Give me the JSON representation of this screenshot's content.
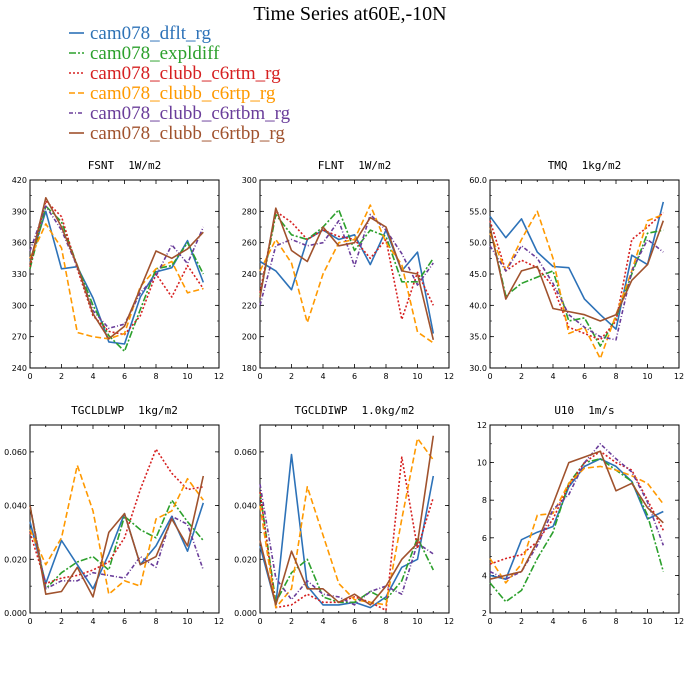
{
  "figure": {
    "title": "Time Series at60E,-10N"
  },
  "legend": [
    {
      "name": "cam078_dflt_rg",
      "color": "#2d72b8",
      "dash": ""
    },
    {
      "name": "cam078_expldiff",
      "color": "#2ca02c",
      "dash": "7,2,2,2"
    },
    {
      "name": "cam078_clubb_c6rtm_rg",
      "color": "#d62020",
      "dash": "2,2"
    },
    {
      "name": "cam078_clubb_c6rtp_rg",
      "color": "#ff9900",
      "dash": "6,3"
    },
    {
      "name": "cam078_clubb_c6rtbm_rg",
      "color": "#6a3d9a",
      "dash": "4,2,1,2"
    },
    {
      "name": "cam078_clubb_c6rtbp_rg",
      "color": "#a0522d",
      "dash": ""
    }
  ],
  "chart_data": [
    {
      "type": "line",
      "title": "FSNT",
      "units": "1W/m2",
      "x": [
        0,
        1,
        2,
        3,
        4,
        5,
        6,
        7,
        8,
        9,
        10,
        11
      ],
      "xlim": [
        0,
        12
      ],
      "xticks": [
        "0",
        "2",
        "4",
        "6",
        "8",
        "10",
        "12"
      ],
      "ylim": [
        240,
        420
      ],
      "yticks": [
        "240",
        "270",
        "300",
        "330",
        "360",
        "390",
        "420"
      ],
      "series": [
        {
          "values": [
            342,
            390,
            335,
            337,
            307,
            265,
            263,
            308,
            332,
            336,
            362,
            322
          ]
        },
        {
          "values": [
            335,
            395,
            380,
            338,
            300,
            271,
            256,
            296,
            335,
            338,
            360,
            330
          ]
        },
        {
          "values": [
            337,
            400,
            385,
            335,
            290,
            275,
            272,
            290,
            330,
            308,
            338,
            316
          ]
        },
        {
          "values": [
            345,
            378,
            355,
            274,
            270,
            268,
            273,
            318,
            335,
            342,
            312,
            316
          ]
        },
        {
          "values": [
            352,
            395,
            372,
            337,
            295,
            278,
            282,
            312,
            328,
            358,
            340,
            375
          ]
        },
        {
          "values": [
            340,
            403,
            375,
            338,
            292,
            268,
            280,
            316,
            352,
            345,
            354,
            370
          ]
        }
      ]
    },
    {
      "type": "line",
      "title": "FLNT",
      "units": "1W/m2",
      "x": [
        0,
        1,
        2,
        3,
        4,
        5,
        6,
        7,
        8,
        9,
        10,
        11
      ],
      "xlim": [
        0,
        12
      ],
      "xticks": [
        "0",
        "2",
        "4",
        "6",
        "8",
        "10",
        "12"
      ],
      "ylim": [
        180,
        300
      ],
      "yticks": [
        "180",
        "200",
        "220",
        "240",
        "260",
        "280",
        "300"
      ],
      "series": [
        {
          "values": [
            248,
            242,
            230,
            262,
            268,
            262,
            265,
            246,
            268,
            242,
            254,
            202
          ]
        },
        {
          "values": [
            226,
            278,
            265,
            262,
            270,
            281,
            255,
            268,
            264,
            235,
            235,
            250
          ]
        },
        {
          "values": [
            228,
            280,
            273,
            262,
            268,
            264,
            262,
            250,
            262,
            211,
            241,
            220
          ]
        },
        {
          "values": [
            242,
            262,
            247,
            209,
            240,
            260,
            262,
            284,
            260,
            246,
            203,
            196
          ]
        },
        {
          "values": [
            220,
            258,
            262,
            258,
            260,
            274,
            245,
            278,
            268,
            253,
            233,
            247
          ]
        },
        {
          "values": [
            225,
            282,
            255,
            248,
            270,
            258,
            260,
            276,
            270,
            242,
            240,
            198
          ]
        }
      ]
    },
    {
      "type": "line",
      "title": "TMQ",
      "units": "1kg/m2",
      "x": [
        0,
        1,
        2,
        3,
        4,
        5,
        6,
        7,
        8,
        9,
        10,
        11
      ],
      "xlim": [
        0,
        12
      ],
      "xticks": [
        "0",
        "2",
        "4",
        "6",
        "8",
        "10",
        "12"
      ],
      "ylim": [
        30.0,
        60.0
      ],
      "yticks": [
        "30.0",
        "35.0",
        "40.0",
        "45.0",
        "50.0",
        "55.0",
        "60.0"
      ],
      "series": [
        {
          "values": [
            54.2,
            50.8,
            53.8,
            48.5,
            46.2,
            46.0,
            41.0,
            38.5,
            36.2,
            48.0,
            46.5,
            56.5
          ]
        },
        {
          "values": [
            52.5,
            41.5,
            43.5,
            44.5,
            45.5,
            37.5,
            38.0,
            33.5,
            38.0,
            45.0,
            51.5,
            52.0
          ]
        },
        {
          "values": [
            53.5,
            45.5,
            47.2,
            46.0,
            43.0,
            36.5,
            35.5,
            34.5,
            37.5,
            50.5,
            52.5,
            54.8
          ]
        },
        {
          "values": [
            51.5,
            45.5,
            50.5,
            55.0,
            47.5,
            35.5,
            36.5,
            31.5,
            38.5,
            45.5,
            53.5,
            54.5
          ]
        },
        {
          "values": [
            49.5,
            45.5,
            49.5,
            47.5,
            43.5,
            38.5,
            36.5,
            35.0,
            34.5,
            45.5,
            50.5,
            48.5
          ]
        },
        {
          "values": [
            52.5,
            41.0,
            45.5,
            46.2,
            39.5,
            39.0,
            38.5,
            37.5,
            38.5,
            44.0,
            46.5,
            53.5
          ]
        }
      ]
    },
    {
      "type": "line",
      "title": "TGCLDLWP",
      "units": "1kg/m2",
      "x": [
        0,
        1,
        2,
        3,
        4,
        5,
        6,
        7,
        8,
        9,
        10,
        11
      ],
      "xlim": [
        0,
        12
      ],
      "xticks": [
        "0",
        "2",
        "4",
        "6",
        "8",
        "10",
        "12"
      ],
      "ylim": [
        0.0,
        0.07
      ],
      "yticks": [
        "0.000",
        "0.020",
        "0.040",
        "0.060"
      ],
      "series": [
        {
          "values": [
            0.034,
            0.011,
            0.027,
            0.018,
            0.009,
            0.022,
            0.037,
            0.018,
            0.025,
            0.036,
            0.023,
            0.041
          ]
        },
        {
          "values": [
            0.04,
            0.009,
            0.015,
            0.019,
            0.021,
            0.016,
            0.036,
            0.031,
            0.028,
            0.042,
            0.034,
            0.027
          ]
        },
        {
          "values": [
            0.03,
            0.011,
            0.013,
            0.014,
            0.016,
            0.019,
            0.028,
            0.046,
            0.061,
            0.052,
            0.046,
            0.047
          ]
        },
        {
          "values": [
            0.031,
            0.018,
            0.028,
            0.055,
            0.038,
            0.007,
            0.012,
            0.01,
            0.035,
            0.038,
            0.05,
            0.042
          ]
        },
        {
          "values": [
            0.04,
            0.009,
            0.012,
            0.012,
            0.015,
            0.014,
            0.013,
            0.021,
            0.017,
            0.036,
            0.033,
            0.016
          ]
        },
        {
          "values": [
            0.04,
            0.007,
            0.008,
            0.017,
            0.006,
            0.03,
            0.037,
            0.018,
            0.021,
            0.035,
            0.025,
            0.051
          ]
        }
      ]
    },
    {
      "type": "line",
      "title": "TGCLDIWP",
      "units": "1.0kg/m2",
      "x": [
        0,
        1,
        2,
        3,
        4,
        5,
        6,
        7,
        8,
        9,
        10,
        11
      ],
      "xlim": [
        0,
        12
      ],
      "xticks": [
        "0",
        "2",
        "4",
        "6",
        "8",
        "10",
        "12"
      ],
      "ylim": [
        0.0,
        0.07
      ],
      "yticks": [
        "0.000",
        "0.020",
        "0.040",
        "0.060"
      ],
      "series": [
        {
          "values": [
            0.025,
            0.003,
            0.059,
            0.01,
            0.003,
            0.003,
            0.004,
            0.002,
            0.006,
            0.017,
            0.02,
            0.051
          ]
        },
        {
          "values": [
            0.045,
            0.004,
            0.015,
            0.02,
            0.006,
            0.004,
            0.004,
            0.008,
            0.005,
            0.012,
            0.028,
            0.016
          ]
        },
        {
          "values": [
            0.045,
            0.002,
            0.003,
            0.007,
            0.004,
            0.004,
            0.006,
            0.004,
            0.001,
            0.058,
            0.024,
            0.043
          ]
        },
        {
          "values": [
            0.04,
            0.002,
            0.009,
            0.047,
            0.029,
            0.011,
            0.005,
            0.004,
            0.003,
            0.035,
            0.065,
            0.057
          ]
        },
        {
          "values": [
            0.048,
            0.013,
            0.005,
            0.012,
            0.007,
            0.006,
            0.003,
            0.008,
            0.01,
            0.007,
            0.026,
            0.022
          ]
        },
        {
          "values": [
            0.027,
            0.003,
            0.023,
            0.009,
            0.009,
            0.004,
            0.007,
            0.003,
            0.01,
            0.02,
            0.026,
            0.066
          ]
        }
      ]
    },
    {
      "type": "line",
      "title": "U10",
      "units": "1m/s",
      "x": [
        0,
        1,
        2,
        3,
        4,
        5,
        6,
        7,
        8,
        9,
        10,
        11
      ],
      "xlim": [
        0,
        12
      ],
      "xticks": [
        "0",
        "2",
        "4",
        "6",
        "8",
        "10",
        "12"
      ],
      "ylim": [
        2,
        12
      ],
      "yticks": [
        "2",
        "4",
        "6",
        "8",
        "10",
        "12"
      ],
      "series": [
        {
          "values": [
            4.0,
            3.8,
            5.9,
            6.3,
            6.6,
            8.7,
            9.8,
            10.2,
            9.8,
            9.0,
            7.0,
            7.4
          ]
        },
        {
          "values": [
            3.6,
            2.6,
            3.2,
            4.9,
            6.3,
            8.9,
            10.0,
            10.2,
            9.6,
            9.0,
            7.2,
            4.2
          ]
        },
        {
          "values": [
            4.6,
            4.9,
            5.1,
            5.8,
            7.0,
            8.8,
            10.0,
            10.6,
            10.0,
            9.6,
            8.0,
            6.4
          ]
        },
        {
          "values": [
            4.9,
            3.6,
            4.6,
            7.2,
            7.3,
            8.9,
            9.7,
            9.8,
            9.6,
            9.3,
            8.9,
            7.8
          ]
        },
        {
          "values": [
            4.2,
            3.8,
            4.2,
            5.6,
            7.5,
            8.3,
            10.0,
            11.0,
            10.2,
            9.5,
            7.9,
            5.6
          ]
        },
        {
          "values": [
            3.8,
            4.0,
            4.2,
            5.8,
            7.8,
            10.0,
            10.3,
            10.6,
            8.5,
            8.9,
            7.6,
            6.8
          ]
        }
      ]
    }
  ]
}
